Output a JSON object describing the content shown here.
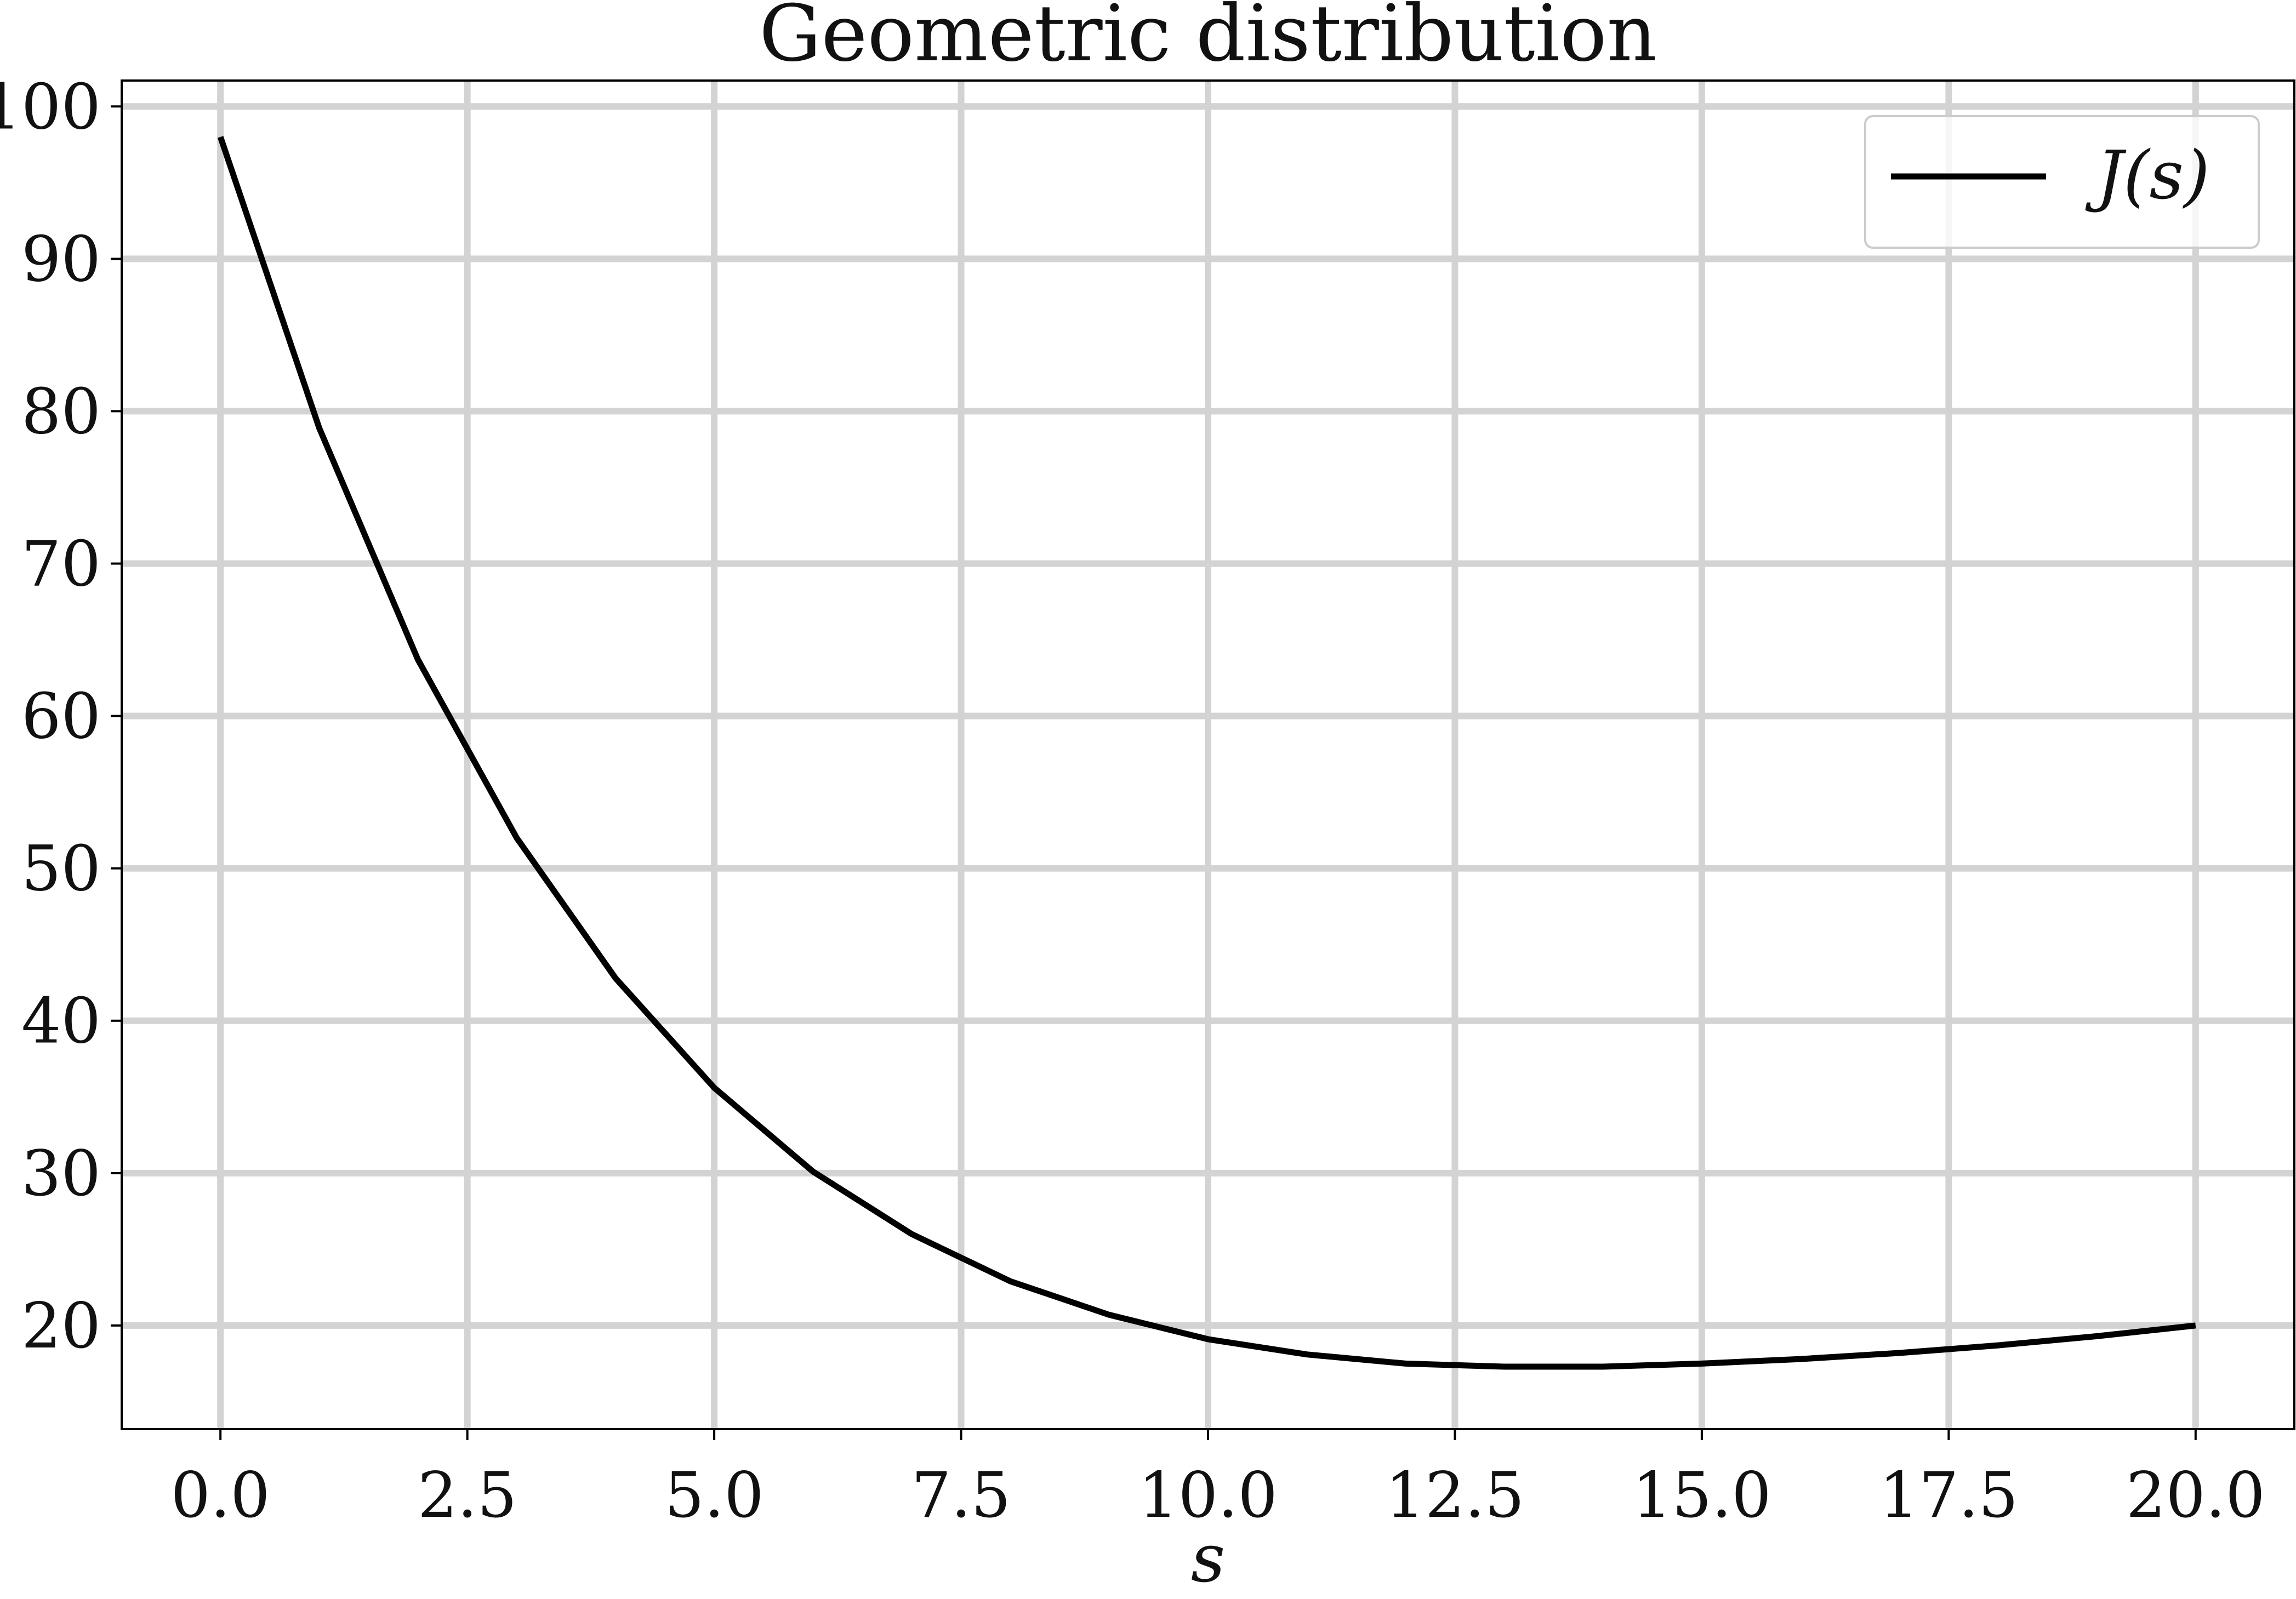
{
  "chart_data": {
    "type": "line",
    "title": "Geometric distribution",
    "xlabel": "s",
    "ylabel": "",
    "xlim": [
      -1.0,
      21.0
    ],
    "ylim": [
      13.2,
      101.7
    ],
    "xticks": [
      0.0,
      2.5,
      5.0,
      7.5,
      10.0,
      12.5,
      15.0,
      17.5,
      20.0
    ],
    "xtick_labels": [
      "0.0",
      "2.5",
      "5.0",
      "7.5",
      "10.0",
      "12.5",
      "15.0",
      "17.5",
      "20.0"
    ],
    "yticks": [
      20,
      30,
      40,
      50,
      60,
      70,
      80,
      90,
      100
    ],
    "ytick_labels": [
      "20",
      "30",
      "40",
      "50",
      "60",
      "70",
      "80",
      "90",
      "100"
    ],
    "grid": true,
    "legend_position": "top-right",
    "series": [
      {
        "name": "J(s)",
        "color": "#000000",
        "x": [
          0,
          1,
          2,
          3,
          4,
          5,
          6,
          7,
          8,
          9,
          10,
          11,
          12,
          13,
          14,
          15,
          16,
          17,
          18,
          19,
          20
        ],
        "y": [
          98.0,
          78.9,
          63.7,
          52.0,
          42.8,
          35.6,
          30.1,
          26.0,
          22.9,
          20.7,
          19.1,
          18.1,
          17.5,
          17.3,
          17.3,
          17.5,
          17.8,
          18.2,
          18.7,
          19.3,
          20.0
        ]
      }
    ]
  }
}
